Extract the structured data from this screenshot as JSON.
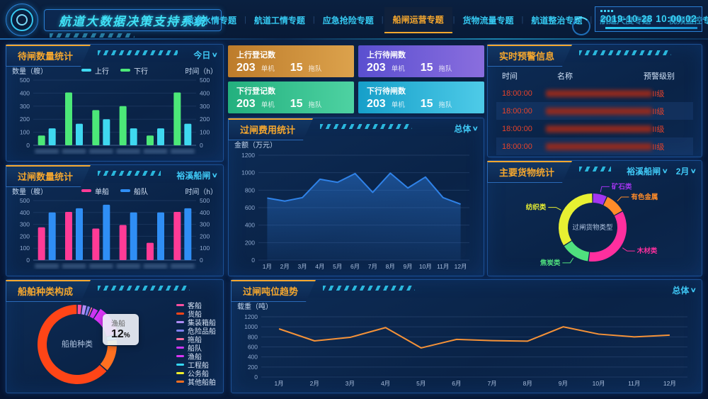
{
  "header": {
    "system_title": "航道大数据决策支持系统",
    "datetime": "2019-10-28 10:00:02",
    "nav_items": [
      {
        "label": "航道水情专题",
        "active": false
      },
      {
        "label": "航道工情专题",
        "active": false
      },
      {
        "label": "应急抢险专题",
        "active": false
      },
      {
        "label": "船闸运营专题",
        "active": true
      },
      {
        "label": "货物流量专题",
        "active": false
      },
      {
        "label": "航道整治专题",
        "active": false
      },
      {
        "label": "航道尺度专题",
        "active": false
      },
      {
        "label": "视频监控专题",
        "active": false
      }
    ]
  },
  "stat_cards": [
    {
      "label": "上行登记数",
      "value1": "203",
      "unit1": "单机",
      "value2": "15",
      "unit2": "拖队",
      "color_from": "#bd7c2b",
      "color_to": "#dca24c"
    },
    {
      "label": "上行待闸数",
      "value1": "203",
      "unit1": "单机",
      "value2": "15",
      "unit2": "拖队",
      "color_from": "#5a4fd0",
      "color_to": "#8a6ede"
    },
    {
      "label": "下行登记数",
      "value1": "203",
      "unit1": "单机",
      "value2": "15",
      "unit2": "拖队",
      "color_from": "#23b07e",
      "color_to": "#4ed2a2"
    },
    {
      "label": "下行待闸数",
      "value1": "203",
      "unit1": "单机",
      "value2": "15",
      "unit2": "拖队",
      "color_from": "#169fc9",
      "color_to": "#4ecbe8"
    }
  ],
  "warning_panel": {
    "title": "实时预警信息",
    "columns": [
      "时间",
      "名称",
      "预警级别"
    ],
    "rows": [
      {
        "time": "18:00:00",
        "name_redacted": true,
        "level": "II级"
      },
      {
        "time": "18:00:00",
        "name_redacted": true,
        "level": "II级"
      },
      {
        "time": "18:00:00",
        "name_redacted": true,
        "level": "II级"
      },
      {
        "time": "18:00:00",
        "name_redacted": true,
        "level": "II级"
      }
    ]
  },
  "chart_data": [
    {
      "id": "waiting_bar",
      "type": "bar",
      "panel_title": "待闸数量统计",
      "selector": "今日",
      "y_left_label": "数量（艘）",
      "y_right_label": "时间（h）",
      "ylim": [
        0,
        500
      ],
      "yticks": [
        0,
        100,
        200,
        300,
        400,
        500
      ],
      "categories_redacted": 6,
      "series": [
        {
          "name": "上行",
          "color": "#3fd8f0",
          "values": [
            130,
            165,
            200,
            130,
            130,
            165
          ]
        },
        {
          "name": "下行",
          "color": "#4ce878",
          "values": [
            75,
            405,
            270,
            300,
            75,
            405
          ]
        }
      ],
      "group_order": [
        1,
        0
      ]
    },
    {
      "id": "passage_bar",
      "type": "bar",
      "panel_title": "过闸数量统计",
      "selector": "裕溪船闸",
      "y_left_label": "数量（艘）",
      "y_right_label": "时间（h）",
      "ylim": [
        0,
        500
      ],
      "yticks": [
        0,
        100,
        200,
        300,
        400,
        500
      ],
      "categories_redacted": 6,
      "series": [
        {
          "name": "单船",
          "color": "#ff3b96",
          "values": [
            275,
            405,
            265,
            295,
            145,
            405
          ]
        },
        {
          "name": "船队",
          "color": "#2f8ef5",
          "values": [
            400,
            435,
            465,
            400,
            400,
            435
          ]
        }
      ],
      "group_order": [
        0,
        1
      ]
    },
    {
      "id": "ship_type_donut",
      "type": "pie",
      "panel_title": "船舶种类构成",
      "center_label": "船舶种类",
      "highlight": "渔船",
      "tooltip": {
        "name": "渔船",
        "value": "12",
        "unit": "%"
      },
      "slices": [
        {
          "name": "客船",
          "color": "#ff4fa0",
          "value": 2
        },
        {
          "name": "货船",
          "color": "#ff4517",
          "value": 63.5
        },
        {
          "name": "集装箱船",
          "color": "#b08cf5",
          "value": 2
        },
        {
          "name": "危险品船",
          "color": "#8080f0",
          "value": 1.5
        },
        {
          "name": "拖船",
          "color": "#ff6e9e",
          "value": 1
        },
        {
          "name": "船队",
          "color": "#cc35f0",
          "value": 2.5
        },
        {
          "name": "渔船",
          "color": "#d935f5",
          "value": 12
        },
        {
          "name": "工程船",
          "color": "#35d8f5",
          "value": 2
        },
        {
          "name": "公务船",
          "color": "#f0ef2c",
          "value": 2.5
        },
        {
          "name": "其他船舶",
          "color": "#ff7020",
          "value": 11
        }
      ],
      "draw_order": [
        0,
        2,
        3,
        4,
        5,
        6,
        7,
        8,
        9,
        1
      ]
    },
    {
      "id": "fee_line",
      "type": "line",
      "panel_title": "过闸费用统计",
      "selector": "总体",
      "y_left_label": "金额（万元）",
      "ylim": [
        0,
        1200
      ],
      "yticks": [
        0,
        200,
        400,
        600,
        800,
        1000,
        1200
      ],
      "x": [
        "1月",
        "2月",
        "3月",
        "4月",
        "5月",
        "6月",
        "7月",
        "8月",
        "9月",
        "10月",
        "11月",
        "12月"
      ],
      "values": [
        710,
        675,
        715,
        925,
        890,
        990,
        775,
        995,
        825,
        950,
        715,
        640
      ],
      "color": "#2f82e8",
      "area": true
    },
    {
      "id": "cargo_donut",
      "type": "pie",
      "panel_title": "主要货物统计",
      "selectors": [
        "裕溪船闸",
        "2月"
      ],
      "center_label": "过闸货物类型",
      "slices": [
        {
          "name": "矿石类",
          "color": "#a335f0",
          "value": 7
        },
        {
          "name": "有色金属",
          "color": "#ff8c28",
          "value": 10
        },
        {
          "name": "木材类",
          "color": "#ff2f9e",
          "value": 35
        },
        {
          "name": "焦炭类",
          "color": "#4fe07e",
          "value": 14
        },
        {
          "name": "纺织类",
          "color": "#e8f032",
          "value": 34
        }
      ]
    },
    {
      "id": "tonnage_line",
      "type": "line",
      "panel_title": "过闸吨位趋势",
      "selector": "总体",
      "y_left_label": "载重（吨）",
      "ylim": [
        0,
        1200
      ],
      "yticks": [
        0,
        200,
        400,
        600,
        800,
        1000,
        1200
      ],
      "x": [
        "1月",
        "2月",
        "3月",
        "4月",
        "5月",
        "6月",
        "7月",
        "8月",
        "9月",
        "10月",
        "11月",
        "12月"
      ],
      "values": [
        960,
        720,
        790,
        985,
        580,
        750,
        725,
        715,
        1000,
        855,
        800,
        835
      ],
      "color": "#f59238",
      "area": false
    }
  ]
}
